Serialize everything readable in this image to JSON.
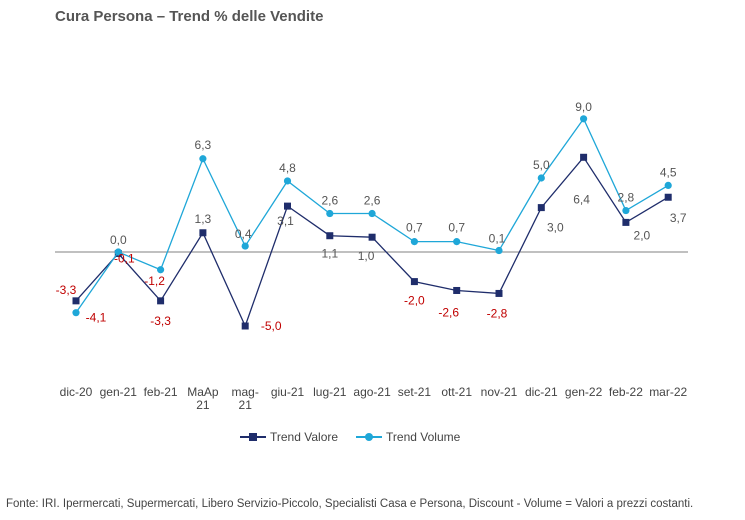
{
  "chart_data": {
    "type": "line",
    "title": "Cura Persona –  Trend % delle Vendite",
    "categories": [
      [
        "dic-20"
      ],
      [
        "gen-21"
      ],
      [
        "feb-21"
      ],
      [
        "MaAp",
        "21"
      ],
      [
        "mag-",
        "21"
      ],
      [
        "giu-21"
      ],
      [
        "lug-21"
      ],
      [
        "ago-21"
      ],
      [
        "set-21"
      ],
      [
        "ott-21"
      ],
      [
        "nov-21"
      ],
      [
        "dic-21"
      ],
      [
        "gen-22"
      ],
      [
        "feb-22"
      ],
      [
        "mar-22"
      ]
    ],
    "series": [
      {
        "name": "Trend Valore",
        "color": "#1f2d6b",
        "marker": "square",
        "values": [
          -3.3,
          -0.1,
          -3.3,
          1.3,
          -5.0,
          3.1,
          1.1,
          1.0,
          -2.0,
          -2.6,
          -2.8,
          3.0,
          6.4,
          2.0,
          3.7
        ],
        "labels": [
          "-3,3",
          "-0,1",
          "-3,3",
          "1,3",
          "-5,0",
          "3,1",
          "1,1",
          "1,0",
          "-2,0",
          "-2,6",
          "-2,8",
          "3,0",
          "6,4",
          "2,0",
          "3,7"
        ]
      },
      {
        "name": "Trend Volume",
        "color": "#1fa7d8",
        "marker": "circle",
        "values": [
          -4.1,
          0.0,
          -1.2,
          6.3,
          0.4,
          4.8,
          2.6,
          2.6,
          0.7,
          0.7,
          0.1,
          5.0,
          9.0,
          2.8,
          4.5
        ],
        "labels": [
          "-4,1",
          "0,0",
          "-1,2",
          "6,3",
          "0,4",
          "4,8",
          "2,6",
          "2,6",
          "0,7",
          "0,7",
          "0,1",
          "5,0",
          "9,0",
          "2,8",
          "4,5"
        ]
      }
    ],
    "legend_position": "bottom",
    "grid": false,
    "baseline": 0,
    "negative_label_color": "#c00000",
    "positive_label_color": "#555555"
  },
  "footer": {
    "source": "Fonte: IRI. Ipermercati, Supermercati, Libero Servizio-Piccolo,  Specialisti Casa e Persona, Discount -  Volume =  Valori a prezzi  costanti."
  }
}
